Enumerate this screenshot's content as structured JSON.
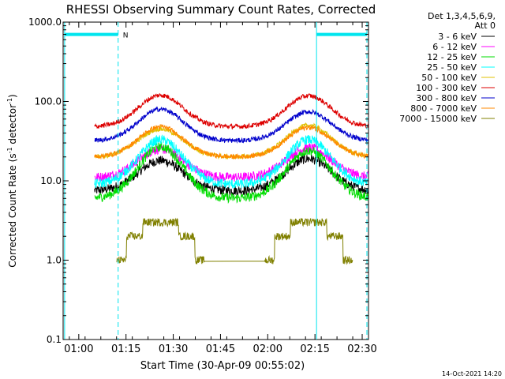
{
  "chart_data": {
    "type": "line",
    "title": "RHESSI Observing Summary Count Rates, Corrected",
    "xlabel": "Start Time (30-Apr-09 00:55:02)",
    "ylabel_main": "Corrected Count Rate (s",
    "ylabel_sup1": "-1",
    "ylabel_mid": " detector",
    "ylabel_sup2": "-1",
    "ylabel_end": ")",
    "yscale": "log",
    "ylim": [
      0.1,
      1000
    ],
    "xlim_minutes": [
      55.03,
      152.0
    ],
    "y_ticks": [
      {
        "v": 0.1,
        "label": "0.1"
      },
      {
        "v": 1,
        "label": "1.0"
      },
      {
        "v": 10,
        "label": "10.0"
      },
      {
        "v": 100,
        "label": "100.0"
      },
      {
        "v": 1000,
        "label": "1000.0"
      }
    ],
    "x_ticks": [
      {
        "v": 60,
        "label": "01:00"
      },
      {
        "v": 75,
        "label": "01:15"
      },
      {
        "v": 90,
        "label": "01:30"
      },
      {
        "v": 105,
        "label": "01:45"
      },
      {
        "v": 120,
        "label": "02:00"
      },
      {
        "v": 135,
        "label": "02:15"
      },
      {
        "v": 150,
        "label": "02:30"
      }
    ],
    "legend_header": [
      "Det 1,3,4,5,6,9,",
      "Att 0"
    ],
    "legend_placement": "right, outside plot",
    "series": [
      {
        "name": "3 - 6 keV",
        "color": "#000000",
        "base": 7.5,
        "peak1": 18,
        "peak2": 19
      },
      {
        "name": "6 - 12 keV",
        "color": "#ff00ff",
        "base": 11,
        "peak1": 25,
        "peak2": 26
      },
      {
        "name": "12 - 25 keV",
        "color": "#00dd00",
        "base": 6,
        "peak1": 27,
        "peak2": 24
      },
      {
        "name": "25 - 50 keV",
        "color": "#00ffff",
        "base": 9,
        "peak1": 33,
        "peak2": 33
      },
      {
        "name": "50 - 100 keV",
        "color": "#e0c000",
        "base": 20,
        "peak1": 45,
        "peak2": 50
      },
      {
        "name": "100 - 300 keV",
        "color": "#dd0000",
        "base": 48,
        "peak1": 120,
        "peak2": 118
      },
      {
        "name": "300 - 800 keV",
        "color": "#0000cc",
        "base": 32,
        "peak1": 80,
        "peak2": 74
      },
      {
        "name": "800 - 7000 keV",
        "color": "#ff8800",
        "base": 20,
        "peak1": 48,
        "peak2": 47
      },
      {
        "name": "7000 - 15000 keV",
        "color": "#808000",
        "base": 1,
        "peak1": 3,
        "peak2": 3
      }
    ],
    "peaks_minutes": [
      86,
      133
    ],
    "peak_width_minutes": 10,
    "data_range_minutes": [
      65,
      152
    ],
    "vertical_markers": [
      {
        "kind": "solid",
        "v": 55.5,
        "color": "#00e5ee"
      },
      {
        "kind": "dashed",
        "v": 72.5,
        "color": "#00e5ee"
      },
      {
        "kind": "solid",
        "v": 135.5,
        "color": "#00e5ee"
      },
      {
        "kind": "dashed",
        "v": 151.5,
        "color": "#00e5ee"
      }
    ],
    "night_bars": [
      {
        "from": 55.5,
        "to": 72.5,
        "y": 700,
        "color": "#00e5ee"
      },
      {
        "from": 135.5,
        "to": 151.5,
        "y": 700,
        "color": "#00e5ee"
      }
    ],
    "night_label": "N",
    "grid": false
  },
  "footer": {
    "timestamp": "14-Oct-2021 14:20"
  }
}
